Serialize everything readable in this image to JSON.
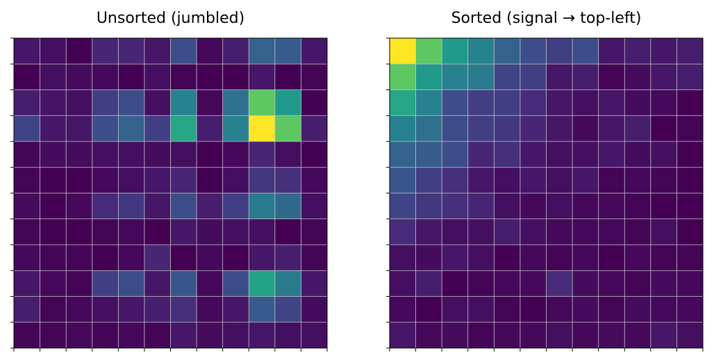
{
  "chart_data": [
    {
      "type": "heatmap",
      "title": "Unsorted (jumbled)",
      "colormap": "viridis",
      "grid": true,
      "xlim": [
        0,
        12
      ],
      "ylim": [
        0,
        12
      ],
      "xticks": [
        0,
        1,
        2,
        3,
        4,
        5,
        6,
        7,
        8,
        9,
        10,
        11,
        12
      ],
      "yticks": [
        0,
        1,
        2,
        3,
        4,
        5,
        6,
        7,
        8,
        9,
        10,
        11,
        12
      ],
      "values": [
        [
          0.08,
          0.06,
          0.02,
          0.12,
          0.12,
          0.08,
          0.25,
          0.04,
          0.1,
          0.33,
          0.3,
          0.08
        ],
        [
          0.02,
          0.06,
          0.05,
          0.04,
          0.02,
          0.06,
          0.03,
          0.02,
          0.02,
          0.08,
          0.02,
          0.03
        ],
        [
          0.1,
          0.07,
          0.06,
          0.2,
          0.25,
          0.06,
          0.45,
          0.04,
          0.38,
          0.75,
          0.55,
          0.02
        ],
        [
          0.22,
          0.08,
          0.08,
          0.25,
          0.33,
          0.2,
          0.6,
          0.1,
          0.45,
          1.0,
          0.75,
          0.1
        ],
        [
          0.03,
          0.05,
          0.05,
          0.06,
          0.06,
          0.05,
          0.06,
          0.02,
          0.04,
          0.12,
          0.06,
          0.02
        ],
        [
          0.03,
          0.02,
          0.02,
          0.04,
          0.06,
          0.08,
          0.12,
          0.02,
          0.06,
          0.18,
          0.15,
          0.04
        ],
        [
          0.05,
          0.02,
          0.04,
          0.14,
          0.18,
          0.08,
          0.25,
          0.1,
          0.2,
          0.42,
          0.35,
          0.06
        ],
        [
          0.03,
          0.02,
          0.02,
          0.03,
          0.04,
          0.02,
          0.08,
          0.05,
          0.06,
          0.06,
          0.02,
          0.03
        ],
        [
          0.04,
          0.03,
          0.03,
          0.02,
          0.04,
          0.12,
          0.02,
          0.04,
          0.02,
          0.08,
          0.1,
          0.03
        ],
        [
          0.08,
          0.04,
          0.03,
          0.2,
          0.25,
          0.08,
          0.28,
          0.04,
          0.25,
          0.58,
          0.42,
          0.08
        ],
        [
          0.1,
          0.03,
          0.04,
          0.06,
          0.08,
          0.1,
          0.15,
          0.04,
          0.08,
          0.3,
          0.22,
          0.05
        ],
        [
          0.03,
          0.03,
          0.04,
          0.03,
          0.04,
          0.03,
          0.08,
          0.05,
          0.06,
          0.08,
          0.06,
          0.06
        ]
      ]
    },
    {
      "type": "heatmap",
      "title": "Sorted (signal → top-left)",
      "colormap": "viridis",
      "grid": true,
      "xlim": [
        0,
        12
      ],
      "ylim": [
        0,
        12
      ],
      "xticks": [
        0,
        1,
        2,
        3,
        4,
        5,
        6,
        7,
        8,
        9,
        10,
        11,
        12
      ],
      "yticks": [
        0,
        1,
        2,
        3,
        4,
        5,
        6,
        7,
        8,
        9,
        10,
        11,
        12
      ],
      "values": [
        [
          1.0,
          0.75,
          0.55,
          0.45,
          0.33,
          0.25,
          0.2,
          0.25,
          0.08,
          0.1,
          0.08,
          0.1
        ],
        [
          0.75,
          0.55,
          0.45,
          0.42,
          0.22,
          0.2,
          0.08,
          0.1,
          0.03,
          0.05,
          0.08,
          0.1
        ],
        [
          0.6,
          0.45,
          0.25,
          0.2,
          0.2,
          0.14,
          0.08,
          0.06,
          0.08,
          0.05,
          0.04,
          0.02
        ],
        [
          0.45,
          0.38,
          0.25,
          0.2,
          0.18,
          0.12,
          0.08,
          0.04,
          0.08,
          0.1,
          0.02,
          0.03
        ],
        [
          0.33,
          0.3,
          0.25,
          0.12,
          0.15,
          0.08,
          0.06,
          0.06,
          0.08,
          0.05,
          0.06,
          0.02
        ],
        [
          0.28,
          0.2,
          0.15,
          0.08,
          0.06,
          0.08,
          0.06,
          0.08,
          0.03,
          0.04,
          0.03,
          0.02
        ],
        [
          0.22,
          0.18,
          0.15,
          0.12,
          0.06,
          0.04,
          0.06,
          0.04,
          0.04,
          0.03,
          0.02,
          0.02
        ],
        [
          0.14,
          0.08,
          0.06,
          0.06,
          0.1,
          0.06,
          0.04,
          0.04,
          0.04,
          0.03,
          0.06,
          0.02
        ],
        [
          0.06,
          0.05,
          0.08,
          0.06,
          0.02,
          0.04,
          0.03,
          0.04,
          0.02,
          0.04,
          0.03,
          0.03
        ],
        [
          0.06,
          0.1,
          0.02,
          0.03,
          0.04,
          0.04,
          0.14,
          0.05,
          0.04,
          0.03,
          0.05,
          0.04
        ],
        [
          0.04,
          0.02,
          0.06,
          0.06,
          0.03,
          0.02,
          0.04,
          0.05,
          0.03,
          0.05,
          0.04,
          0.04
        ],
        [
          0.08,
          0.04,
          0.05,
          0.03,
          0.04,
          0.04,
          0.06,
          0.04,
          0.05,
          0.04,
          0.08,
          0.06
        ]
      ]
    }
  ]
}
